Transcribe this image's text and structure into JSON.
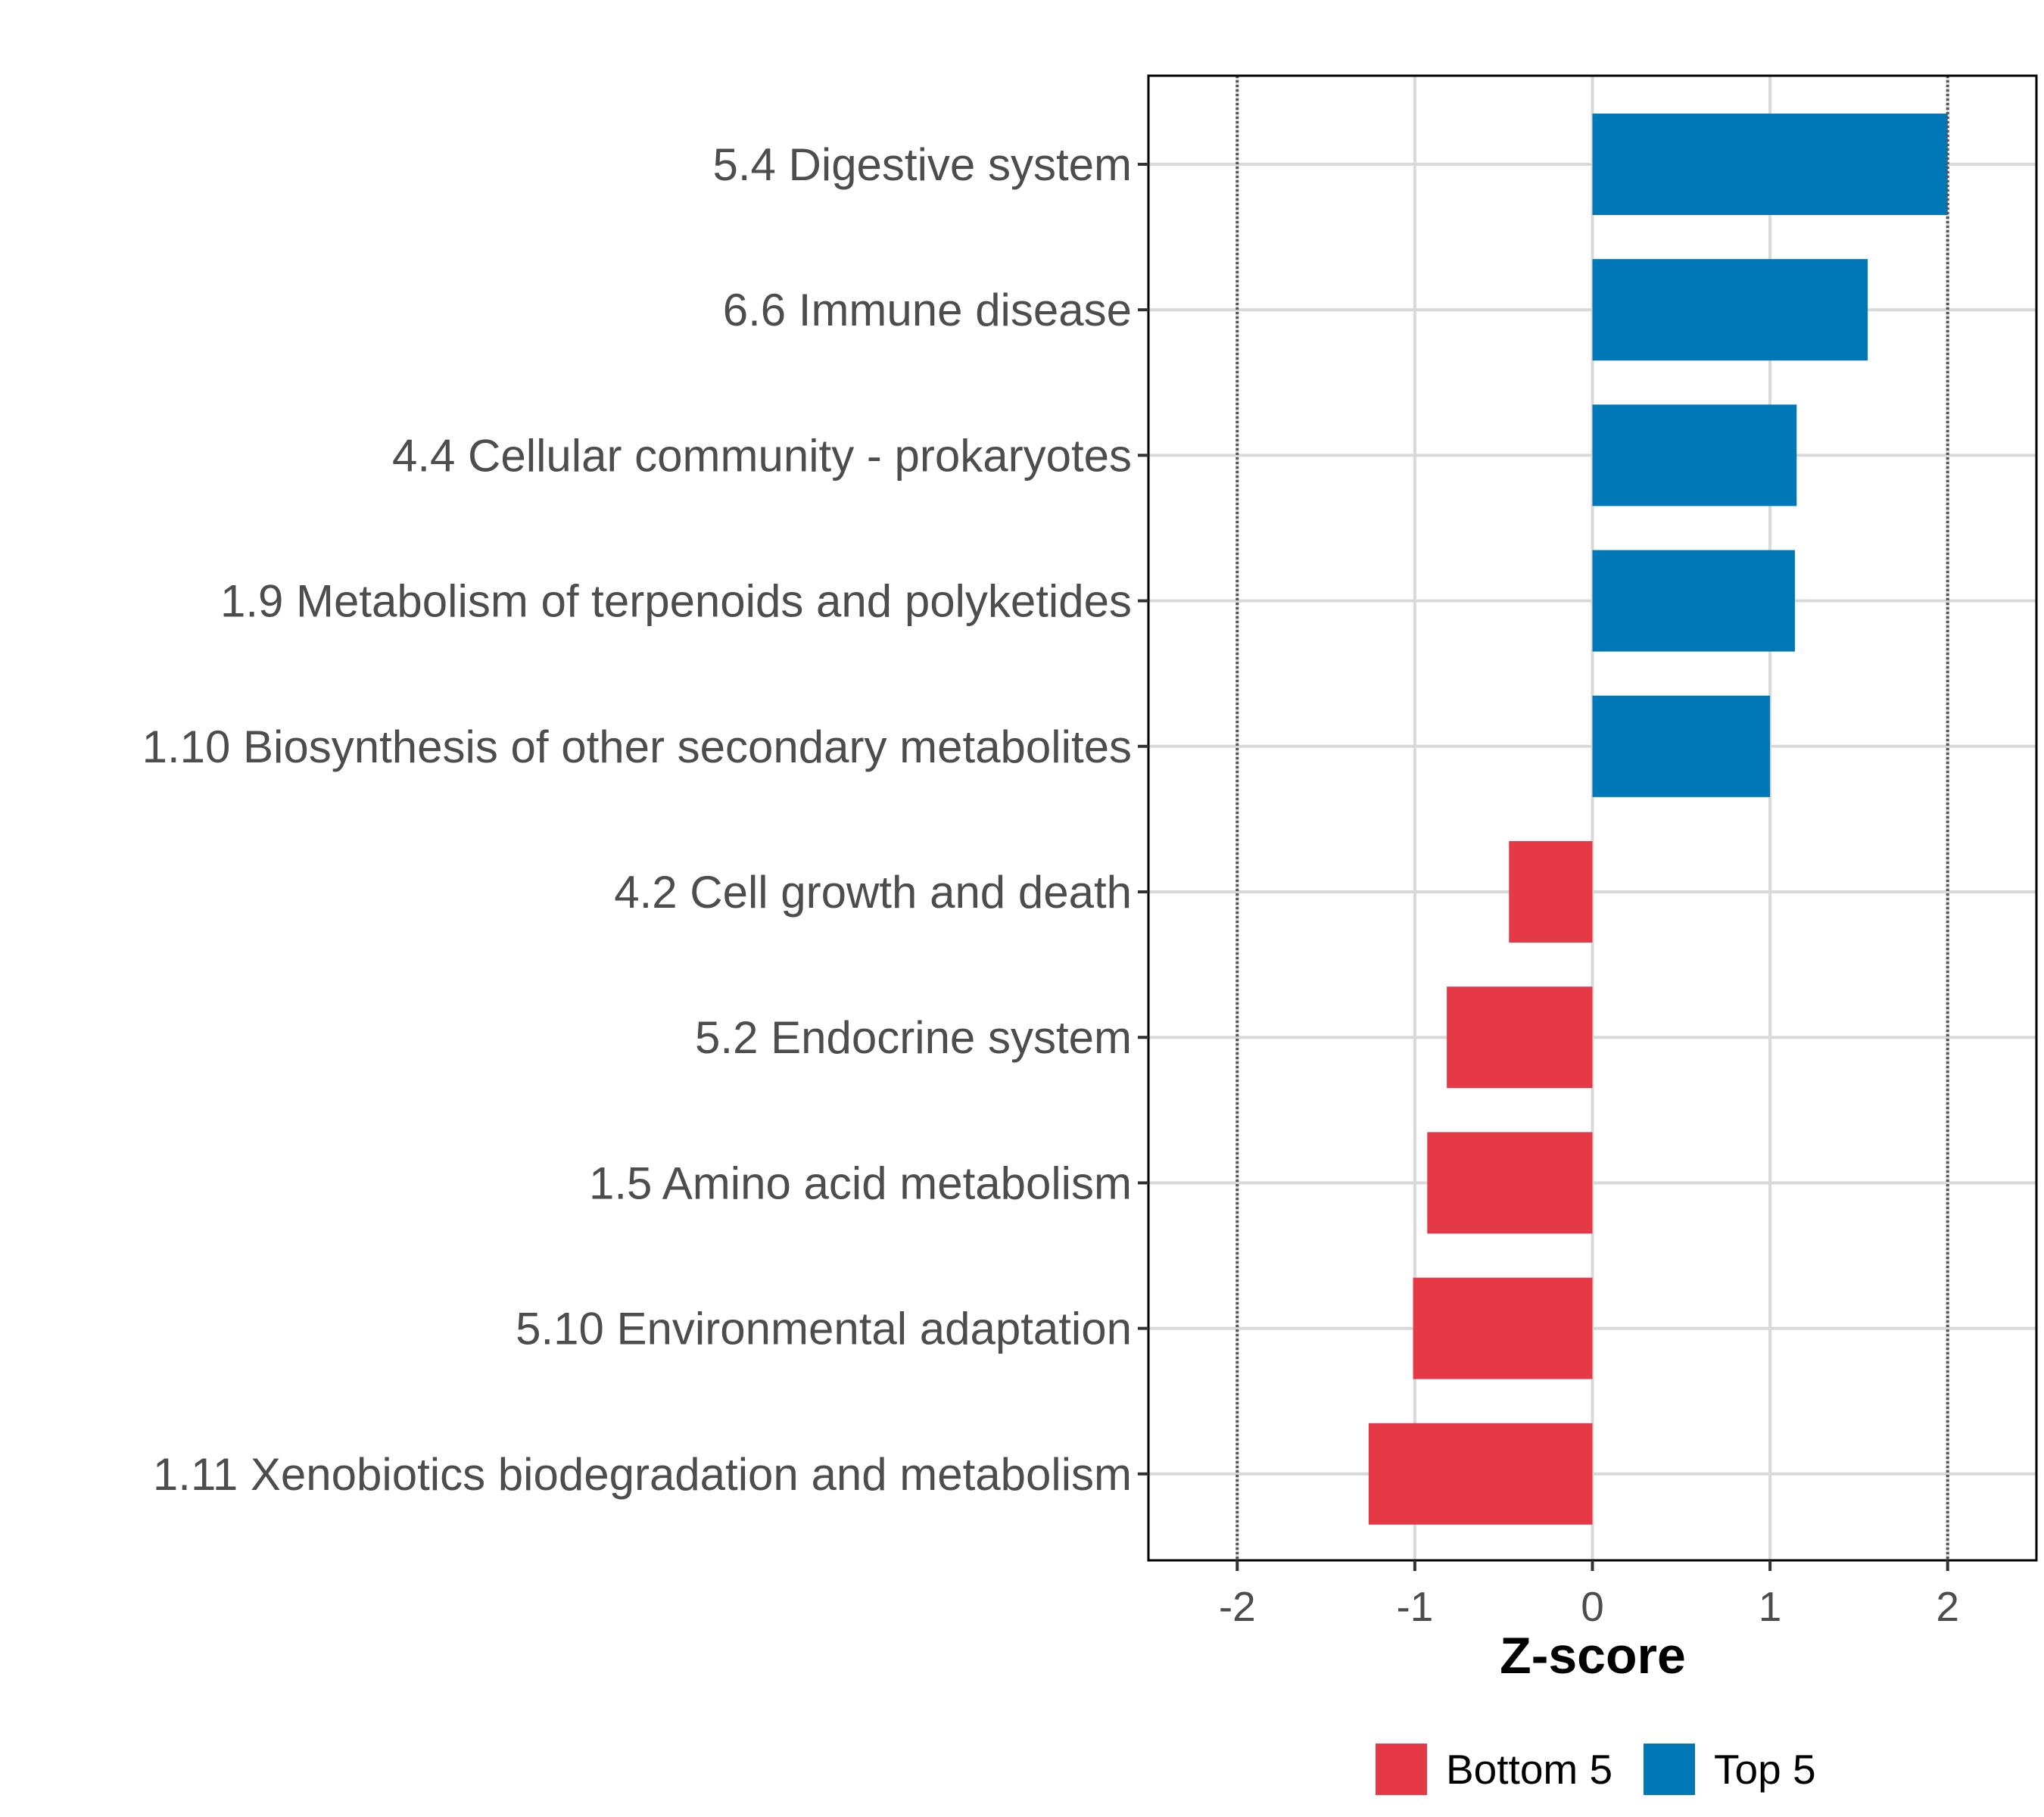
{
  "chart_data": {
    "type": "bar",
    "orientation": "horizontal",
    "categories": [
      "5.4 Digestive system",
      "6.6 Immune disease",
      "4.4 Cellular community - prokaryotes",
      "1.9 Metabolism of terpenoids and polyketides",
      "1.10 Biosynthesis of other secondary metabolites",
      "4.2 Cell growth and death",
      "5.2 Endocrine system",
      "1.5 Amino acid metabolism",
      "5.10 Environmental adaptation",
      "1.11 Xenobiotics biodegradation and metabolism"
    ],
    "values": [
      2.0,
      1.55,
      1.15,
      1.14,
      1.0,
      -0.47,
      -0.82,
      -0.93,
      -1.01,
      -1.26
    ],
    "groups": [
      "Top 5",
      "Top 5",
      "Top 5",
      "Top 5",
      "Top 5",
      "Bottom 5",
      "Bottom 5",
      "Bottom 5",
      "Bottom 5",
      "Bottom 5"
    ],
    "xlabel": "Z-score",
    "ylabel": "",
    "xlim": [
      -2.5,
      2.5
    ],
    "xticks": [
      -2,
      -1,
      0,
      1,
      2
    ],
    "xtick_labels": [
      "-2",
      "-1",
      "0",
      "1",
      "2"
    ],
    "reference_lines": [
      -2,
      2
    ],
    "grid": true,
    "legend": {
      "position": "bottom",
      "entries": [
        {
          "label": "Bottom 5",
          "color": "#e63946"
        },
        {
          "label": "Top 5",
          "color": "#0077b6"
        }
      ]
    },
    "colors": {
      "Top 5": "#0077b6",
      "Bottom 5": "#e63946"
    }
  }
}
